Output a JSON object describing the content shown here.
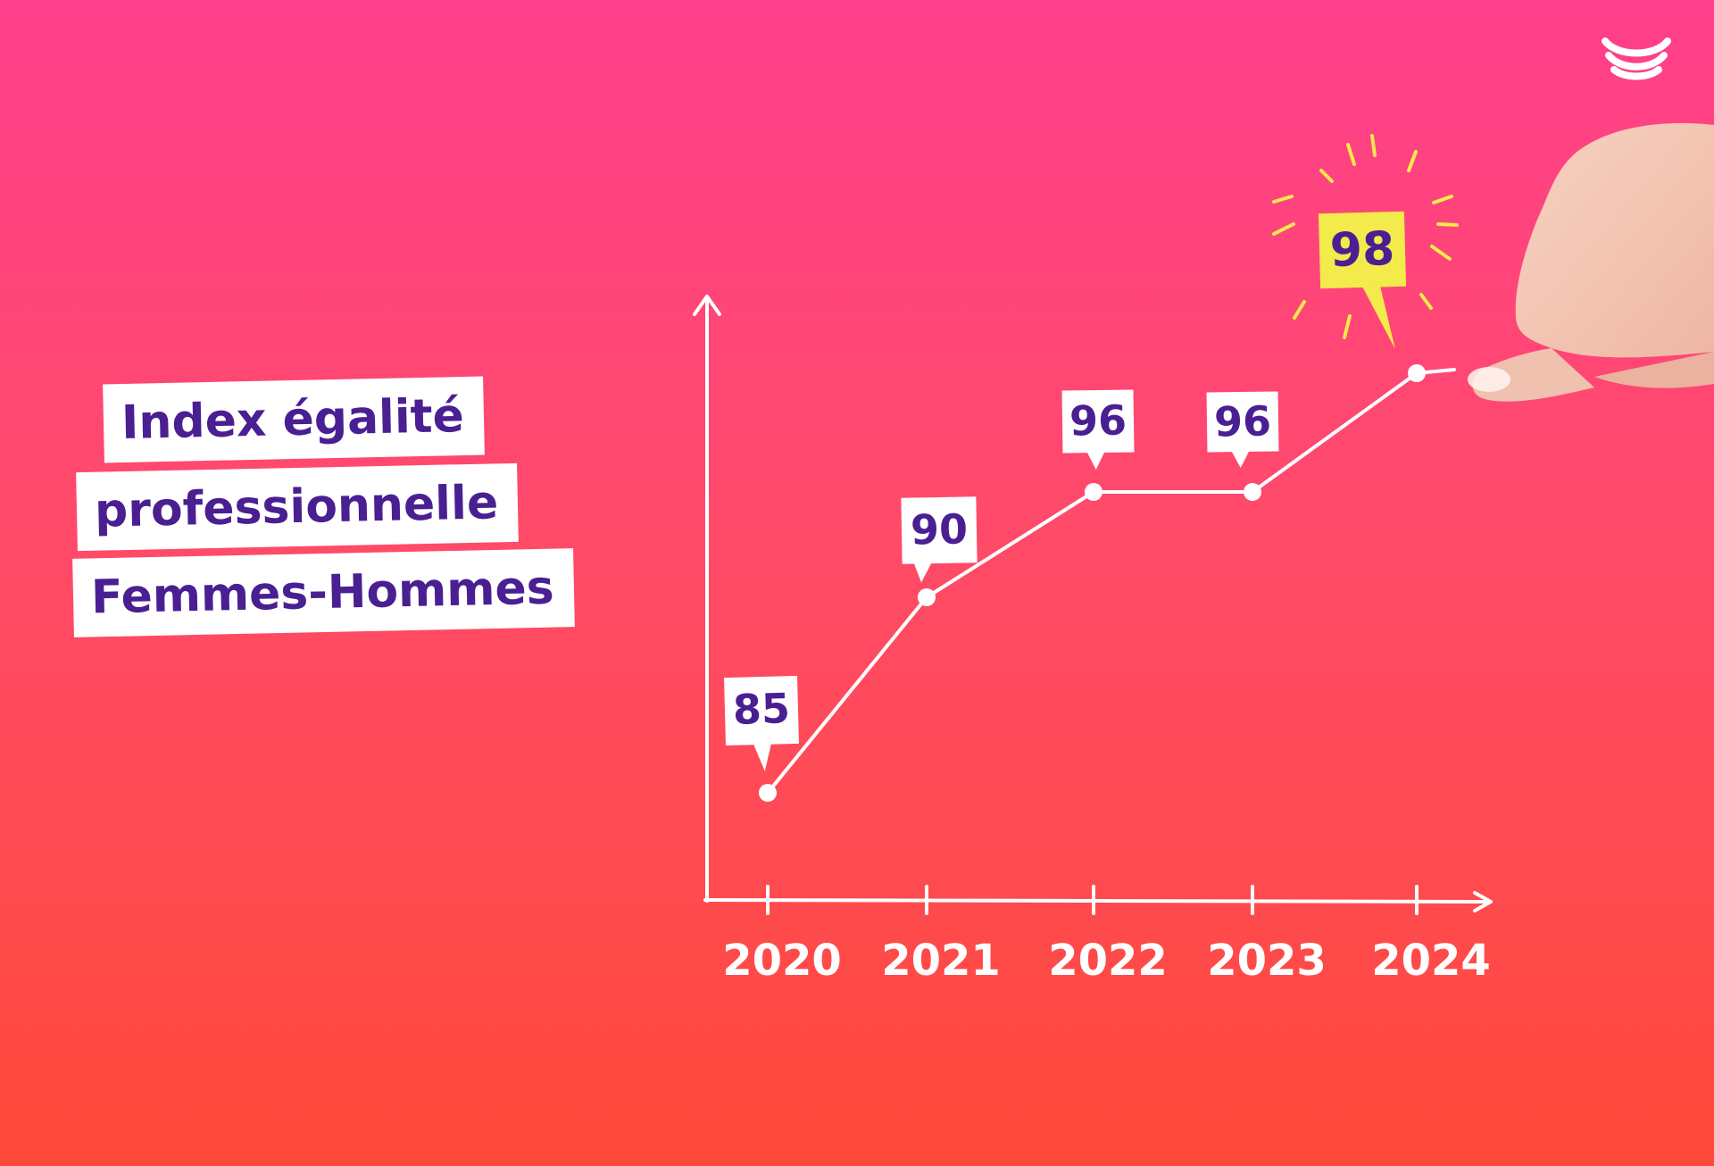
{
  "title_lines": [
    "Index égalité",
    "professionnelle",
    "Femmes-Hommes"
  ],
  "colors": {
    "title_text": "#4a1f92",
    "label_bg": "#ffffff",
    "highlight_bg": "#f3ea4b",
    "axis_line": "#ffffff",
    "x_label": "#ffffff"
  },
  "logo": {
    "icon": "brand-waves-icon"
  },
  "chart_data": {
    "type": "line",
    "categories": [
      "2020",
      "2021",
      "2022",
      "2023",
      "2024"
    ],
    "values": [
      85,
      90,
      96,
      96,
      98
    ],
    "highlight_index": 4,
    "ylim": [
      80,
      100
    ],
    "grid": false,
    "legend": "none"
  }
}
